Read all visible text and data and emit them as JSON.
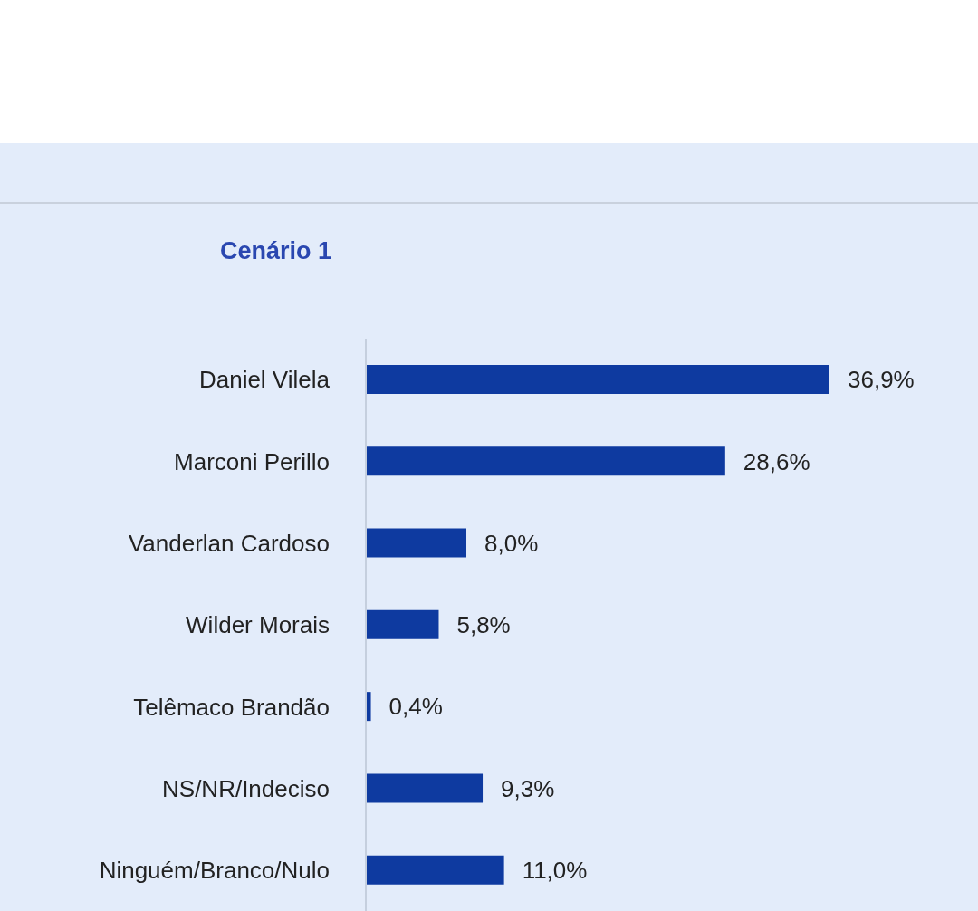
{
  "chart_data": {
    "type": "bar",
    "orientation": "horizontal",
    "title": "Cenário 1",
    "categories": [
      "Daniel Vilela",
      "Marconi Perillo",
      "Vanderlan Cardoso",
      "Wilder Morais",
      "Telêmaco Brandão",
      "NS/NR/Indeciso",
      "Ninguém/Branco/Nulo"
    ],
    "values": [
      36.9,
      28.6,
      8.0,
      5.8,
      0.4,
      9.3,
      11.0
    ],
    "value_labels": [
      "36,9%",
      "28,6%",
      "8,0%",
      "5,8%",
      "0,4%",
      "9,3%",
      "11,0%"
    ],
    "color": "#0e3aa0",
    "grid": false,
    "legend": false
  }
}
